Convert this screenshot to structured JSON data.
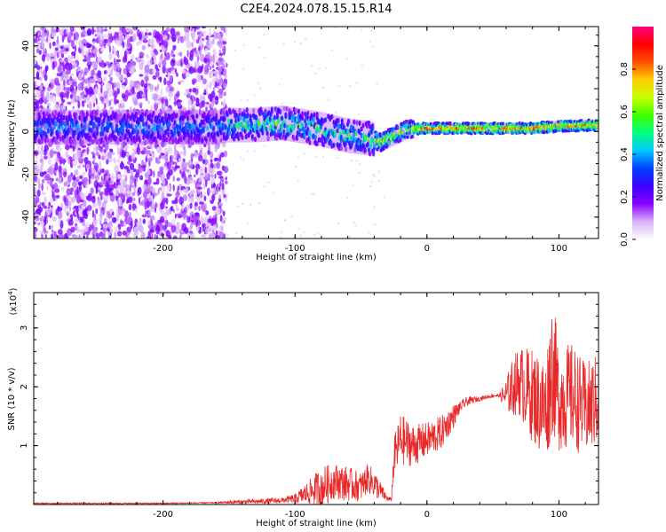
{
  "title": "C2E4.2024.078.15.15.R14",
  "chart_data": [
    {
      "type": "heatmap",
      "xlabel": "Height of straight line (km)",
      "ylabel": "Frequency (Hz)",
      "xlim": [
        -298,
        130
      ],
      "ylim": [
        -50,
        49
      ],
      "x_ticks": [
        -200,
        -100,
        0,
        100
      ],
      "x_tick_labels": [
        "-200",
        "-100",
        "0",
        "100"
      ],
      "y_ticks": [
        -40,
        -20,
        0,
        20,
        40
      ],
      "y_tick_labels": [
        "-40",
        "-20",
        "0",
        "20",
        "40"
      ],
      "ridge": {
        "x": [
          -298,
          -250,
          -200,
          -160,
          -150,
          -130,
          -110,
          -100,
          -80,
          -60,
          -45,
          -35,
          -25,
          -15,
          0,
          20,
          40,
          60,
          80,
          100,
          130
        ],
        "y": [
          2,
          2,
          2,
          2,
          3,
          3,
          4,
          3,
          1,
          -2,
          -3,
          -5,
          -2,
          1,
          1.5,
          1.5,
          1.5,
          1.5,
          1.5,
          2.5,
          3
        ]
      },
      "colorbar": {
        "label": "Normalized spectral amplitude",
        "ticks": [
          0.0,
          0.2,
          0.4,
          0.6,
          0.8
        ],
        "tick_labels": [
          "0.0",
          "0.2",
          "0.4",
          "0.6",
          "0.8"
        ],
        "range": [
          0,
          1
        ],
        "colormap": [
          "#ffffff",
          "#d8b4f8",
          "#8a00ff",
          "#3a00ff",
          "#0040ff",
          "#00c8ff",
          "#00ff80",
          "#40ff00",
          "#c8ff00",
          "#ffd000",
          "#ff5000",
          "#ff0000",
          "#ff0080"
        ]
      }
    },
    {
      "type": "line",
      "xlabel": "Height of straight line (km)",
      "ylabel": "SNR (10 * v/v)",
      "scale_label": "(x10^4)",
      "xlim": [
        -298,
        130
      ],
      "ylim": [
        0,
        3.6
      ],
      "x_ticks": [
        -200,
        -100,
        0,
        100
      ],
      "x_tick_labels": [
        "-200",
        "-100",
        "0",
        "100"
      ],
      "y_ticks": [
        1,
        2,
        3
      ],
      "y_tick_labels": [
        "1",
        "2",
        "3"
      ],
      "color": "#e8292a",
      "series": [
        {
          "x": [
            -298,
            -250,
            -200,
            -160,
            -150,
            -130,
            -110,
            -100,
            -90,
            -80,
            -70,
            -60,
            -50,
            -45,
            -40,
            -30,
            -27,
            -25,
            -20,
            -15,
            -10,
            0,
            10,
            20,
            25,
            30,
            40,
            50,
            55,
            60,
            65,
            70,
            80,
            90,
            95,
            100,
            110,
            120,
            130
          ],
          "y": [
            0.02,
            0.02,
            0.02,
            0.03,
            0.04,
            0.05,
            0.07,
            0.1,
            0.2,
            0.3,
            0.4,
            0.35,
            0.3,
            0.45,
            0.35,
            0.1,
            0.08,
            0.8,
            1.1,
            1.05,
            1.0,
            1.1,
            1.2,
            1.5,
            1.65,
            1.75,
            1.8,
            1.85,
            1.85,
            1.85,
            2.0,
            2.1,
            1.85,
            1.6,
            2.4,
            1.8,
            1.85,
            1.6,
            1.8
          ],
          "spread": [
            0.01,
            0.01,
            0.01,
            0.01,
            0.03,
            0.04,
            0.05,
            0.08,
            0.2,
            0.35,
            0.3,
            0.3,
            0.25,
            0.25,
            0.25,
            0.05,
            0.03,
            0.35,
            0.45,
            0.4,
            0.35,
            0.3,
            0.3,
            0.2,
            0.1,
            0.08,
            0.04,
            0.03,
            0.03,
            0.3,
            0.5,
            0.6,
            0.8,
            0.9,
            1.2,
            0.9,
            0.9,
            0.8,
            0.8
          ]
        }
      ]
    }
  ]
}
